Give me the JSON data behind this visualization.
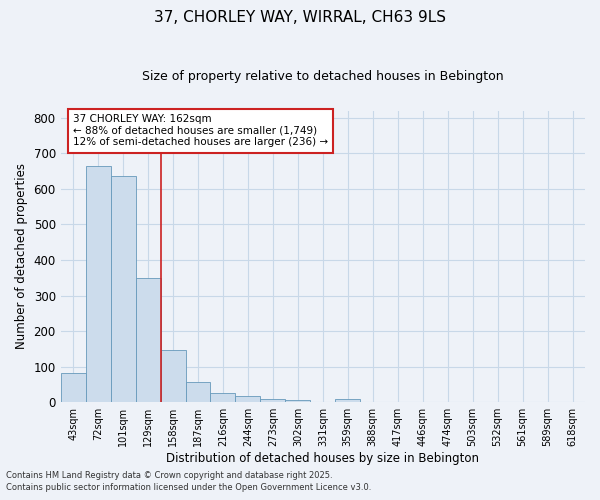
{
  "title": "37, CHORLEY WAY, WIRRAL, CH63 9LS",
  "subtitle": "Size of property relative to detached houses in Bebington",
  "xlabel": "Distribution of detached houses by size in Bebington",
  "ylabel": "Number of detached properties",
  "bin_labels": [
    "43sqm",
    "72sqm",
    "101sqm",
    "129sqm",
    "158sqm",
    "187sqm",
    "216sqm",
    "244sqm",
    "273sqm",
    "302sqm",
    "331sqm",
    "359sqm",
    "388sqm",
    "417sqm",
    "446sqm",
    "474sqm",
    "503sqm",
    "532sqm",
    "561sqm",
    "589sqm",
    "618sqm"
  ],
  "bar_heights": [
    82,
    665,
    635,
    350,
    148,
    58,
    27,
    18,
    10,
    5,
    0,
    8,
    0,
    0,
    0,
    0,
    0,
    0,
    0,
    0,
    0
  ],
  "bar_color": "#ccdcec",
  "bar_edge_color": "#6699bb",
  "grid_color": "#c8d8e8",
  "vline_color": "#cc2222",
  "ylim": [
    0,
    820
  ],
  "yticks": [
    0,
    100,
    200,
    300,
    400,
    500,
    600,
    700,
    800
  ],
  "annotation_text": "37 CHORLEY WAY: 162sqm\n← 88% of detached houses are smaller (1,749)\n12% of semi-detached houses are larger (236) →",
  "annotation_box_color": "#ffffff",
  "annotation_border_color": "#cc2222",
  "footnote1": "Contains HM Land Registry data © Crown copyright and database right 2025.",
  "footnote2": "Contains public sector information licensed under the Open Government Licence v3.0.",
  "background_color": "#eef2f8"
}
